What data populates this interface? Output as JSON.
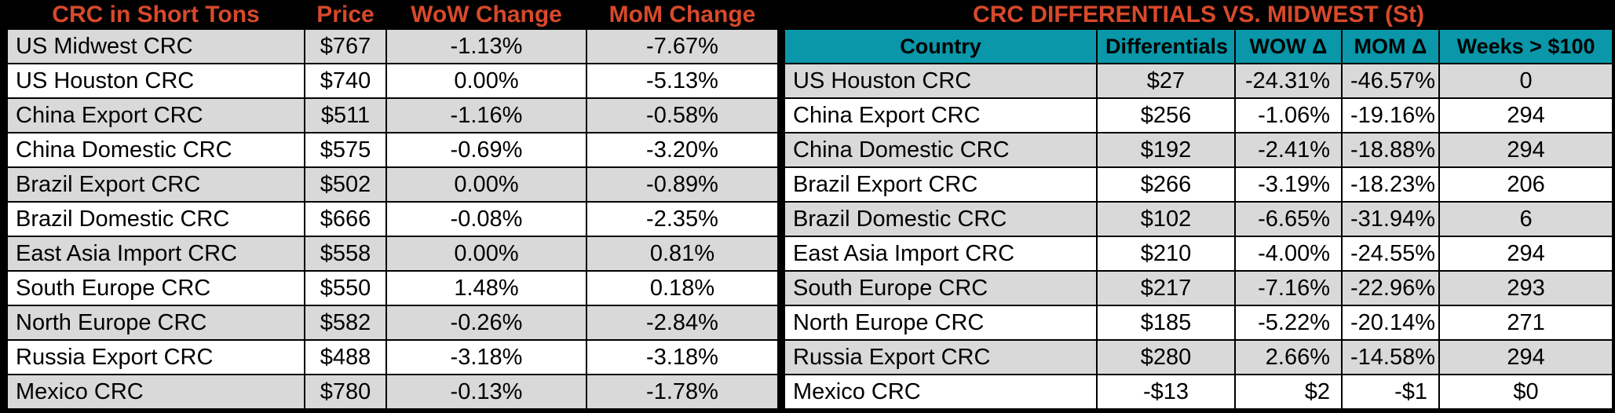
{
  "colors": {
    "frame_black": "#000000",
    "accent_orange": "#D8492B",
    "header_teal": "#0997A9",
    "row_gray": "#D9D9D9",
    "row_white": "#FFFFFF"
  },
  "left_table": {
    "title": "CRC in Short Tons",
    "headers": [
      "Price",
      "WoW Change",
      "MoM Change"
    ],
    "rows": [
      {
        "name": "US Midwest CRC",
        "price": "$767",
        "wow": "-1.13%",
        "mom": "-7.67%"
      },
      {
        "name": "US Houston CRC",
        "price": "$740",
        "wow": "0.00%",
        "mom": "-5.13%"
      },
      {
        "name": "China Export CRC",
        "price": "$511",
        "wow": "-1.16%",
        "mom": "-0.58%"
      },
      {
        "name": "China Domestic CRC",
        "price": "$575",
        "wow": "-0.69%",
        "mom": "-3.20%"
      },
      {
        "name": "Brazil Export CRC",
        "price": "$502",
        "wow": "0.00%",
        "mom": "-0.89%"
      },
      {
        "name": "Brazil Domestic CRC",
        "price": "$666",
        "wow": "-0.08%",
        "mom": "-2.35%"
      },
      {
        "name": "East Asia Import CRC",
        "price": "$558",
        "wow": "0.00%",
        "mom": "0.81%"
      },
      {
        "name": "South Europe CRC",
        "price": "$550",
        "wow": "1.48%",
        "mom": "0.18%"
      },
      {
        "name": "North Europe CRC",
        "price": "$582",
        "wow": "-0.26%",
        "mom": "-2.84%"
      },
      {
        "name": "Russia Export CRC",
        "price": "$488",
        "wow": "-3.18%",
        "mom": "-3.18%"
      },
      {
        "name": "Mexico CRC",
        "price": "$780",
        "wow": "-0.13%",
        "mom": "-1.78%"
      }
    ]
  },
  "right_table": {
    "title": "CRC DIFFERENTIALS VS. MIDWEST (St)",
    "headers": [
      "Country",
      "Differentials",
      "WOW Δ",
      "MOM Δ",
      "Weeks > $100"
    ],
    "rows": [
      {
        "country": "US Houston CRC",
        "differential": "$27",
        "wow": "-24.31%",
        "mom": "-46.57%",
        "weeks": "0"
      },
      {
        "country": "China Export CRC",
        "differential": "$256",
        "wow": "-1.06%",
        "mom": "-19.16%",
        "weeks": "294"
      },
      {
        "country": "China Domestic CRC",
        "differential": "$192",
        "wow": "-2.41%",
        "mom": "-18.88%",
        "weeks": "294"
      },
      {
        "country": "Brazil Export CRC",
        "differential": "$266",
        "wow": "-3.19%",
        "mom": "-18.23%",
        "weeks": "206"
      },
      {
        "country": "Brazil Domestic CRC",
        "differential": "$102",
        "wow": "-6.65%",
        "mom": "-31.94%",
        "weeks": "6"
      },
      {
        "country": "East Asia Import CRC",
        "differential": "$210",
        "wow": "-4.00%",
        "mom": "-24.55%",
        "weeks": "294"
      },
      {
        "country": "South Europe CRC",
        "differential": "$217",
        "wow": "-7.16%",
        "mom": "-22.96%",
        "weeks": "293"
      },
      {
        "country": "North Europe CRC",
        "differential": "$185",
        "wow": "-5.22%",
        "mom": "-20.14%",
        "weeks": "271"
      },
      {
        "country": "Russia Export CRC",
        "differential": "$280",
        "wow": "2.66%",
        "mom": "-14.58%",
        "weeks": "294"
      },
      {
        "country": "Mexico CRC",
        "differential": "-$13",
        "wow": "$2",
        "mom": "-$1",
        "weeks": "$0"
      }
    ]
  },
  "chart_data": [
    {
      "type": "table",
      "title": "CRC in Short Tons",
      "columns": [
        "CRC in Short Tons",
        "Price",
        "WoW Change",
        "MoM Change"
      ],
      "rows": [
        [
          "US Midwest CRC",
          "$767",
          "-1.13%",
          "-7.67%"
        ],
        [
          "US Houston CRC",
          "$740",
          "0.00%",
          "-5.13%"
        ],
        [
          "China Export CRC",
          "$511",
          "-1.16%",
          "-0.58%"
        ],
        [
          "China Domestic CRC",
          "$575",
          "-0.69%",
          "-3.20%"
        ],
        [
          "Brazil Export CRC",
          "$502",
          "0.00%",
          "-0.89%"
        ],
        [
          "Brazil Domestic CRC",
          "$666",
          "-0.08%",
          "-2.35%"
        ],
        [
          "East Asia Import CRC",
          "$558",
          "0.00%",
          "0.81%"
        ],
        [
          "South Europe CRC",
          "$550",
          "1.48%",
          "0.18%"
        ],
        [
          "North Europe CRC",
          "$582",
          "-0.26%",
          "-2.84%"
        ],
        [
          "Russia Export CRC",
          "$488",
          "-3.18%",
          "-3.18%"
        ],
        [
          "Mexico CRC",
          "$780",
          "-0.13%",
          "-1.78%"
        ]
      ]
    },
    {
      "type": "table",
      "title": "CRC DIFFERENTIALS VS. MIDWEST (St)",
      "columns": [
        "Country",
        "Differentials",
        "WOW Δ",
        "MOM Δ",
        "Weeks > $100"
      ],
      "rows": [
        [
          "US Houston CRC",
          "$27",
          "-24.31%",
          "-46.57%",
          "0"
        ],
        [
          "China Export CRC",
          "$256",
          "-1.06%",
          "-19.16%",
          "294"
        ],
        [
          "China Domestic CRC",
          "$192",
          "-2.41%",
          "-18.88%",
          "294"
        ],
        [
          "Brazil Export CRC",
          "$266",
          "-3.19%",
          "-18.23%",
          "206"
        ],
        [
          "Brazil Domestic CRC",
          "$102",
          "-6.65%",
          "-31.94%",
          "6"
        ],
        [
          "East Asia Import CRC",
          "$210",
          "-4.00%",
          "-24.55%",
          "294"
        ],
        [
          "South Europe CRC",
          "$217",
          "-7.16%",
          "-22.96%",
          "293"
        ],
        [
          "North Europe CRC",
          "$185",
          "-5.22%",
          "-20.14%",
          "271"
        ],
        [
          "Russia Export CRC",
          "$280",
          "2.66%",
          "-14.58%",
          "294"
        ],
        [
          "Mexico CRC",
          "-$13",
          "$2",
          "-$1",
          "$0"
        ]
      ]
    }
  ]
}
